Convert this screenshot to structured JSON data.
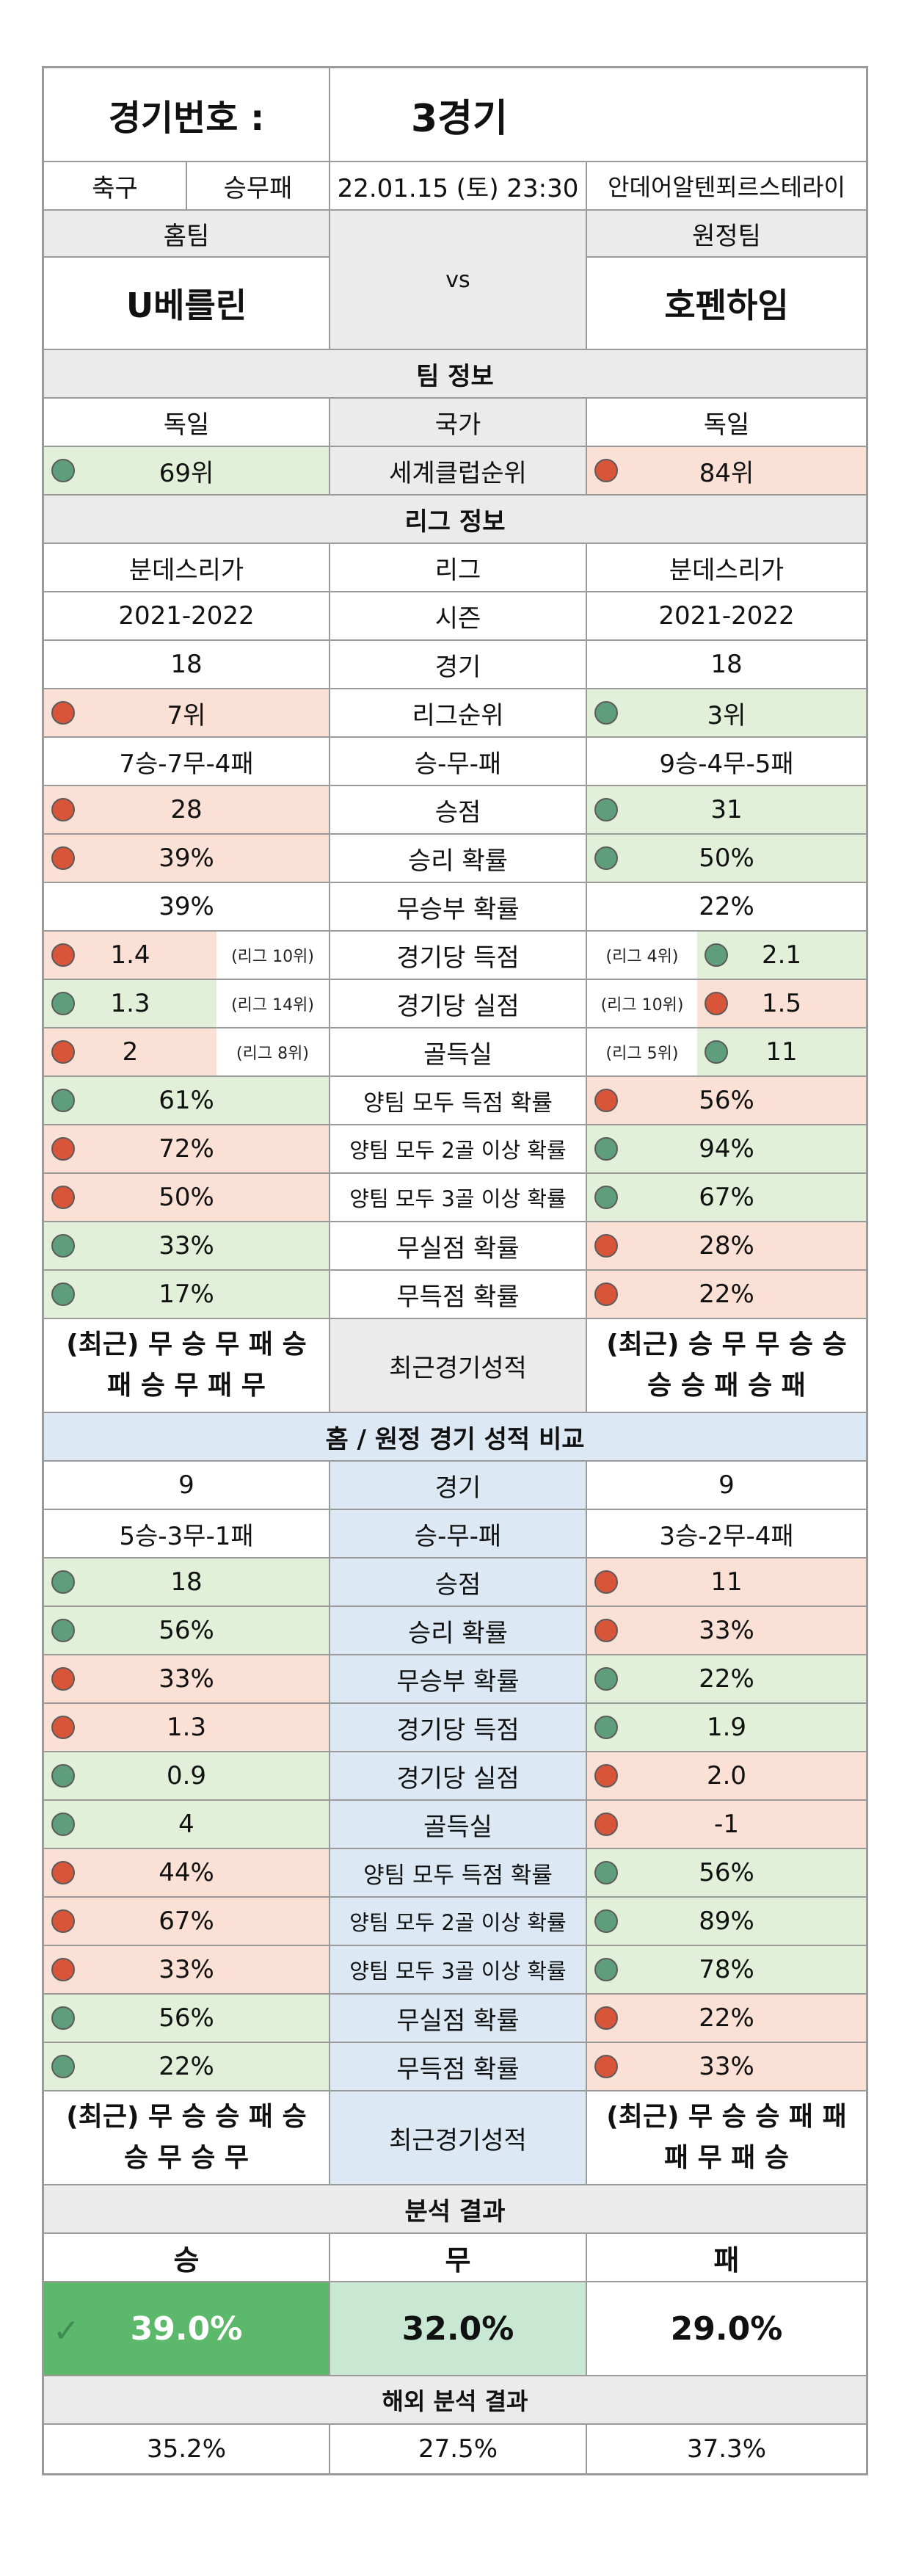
{
  "header": {
    "game_label": "경기번호 :",
    "game_value": "3경기"
  },
  "info": {
    "sport": "축구",
    "bet_type": "승무패",
    "datetime": "22.01.15 (토) 23:30",
    "stadium": "안데어알텐푀르스테라이"
  },
  "teams": {
    "home_label": "홈팀",
    "away_label": "원정팀",
    "vs": "vs",
    "home": "U베를린",
    "away": "호펜하임"
  },
  "team_info": {
    "title": "팀 정보",
    "rows": [
      {
        "home": "독일",
        "label": "국가",
        "away": "독일"
      },
      {
        "home": "69위",
        "label": "세계클럽순위",
        "away": "84위"
      }
    ]
  },
  "league_info": {
    "title": "리그 정보",
    "plain_rows": [
      {
        "home": "분데스리가",
        "label": "리그",
        "away": "분데스리가"
      },
      {
        "home": "2021-2022",
        "label": "시즌",
        "away": "2021-2022"
      },
      {
        "home": "18",
        "label": "경기",
        "away": "18"
      }
    ],
    "rank": {
      "home": "7위",
      "label": "리그순위",
      "away": "3위"
    },
    "record": {
      "home": "7승-7무-4패",
      "label": "승-무-패",
      "away": "9승-4무-5패"
    },
    "points": {
      "home": "28",
      "label": "승점",
      "away": "31"
    },
    "win_prob": {
      "home": "39%",
      "label": "승리 확률",
      "away": "50%"
    },
    "draw_prob": {
      "home": "39%",
      "label": "무승부 확률",
      "away": "22%"
    },
    "split_rows": [
      {
        "home": "1.4",
        "home_rank": "(리그 10위)",
        "label": "경기당 득점",
        "away_rank": "(리그 4위)",
        "away": "2.1"
      },
      {
        "home": "1.3",
        "home_rank": "(리그 14위)",
        "label": "경기당 실점",
        "away_rank": "(리그 10위)",
        "away": "1.5"
      },
      {
        "home": "2",
        "home_rank": "(리그 8위)",
        "label": "골득실",
        "away_rank": "(리그 5위)",
        "away": "11"
      }
    ],
    "prob_rows": [
      {
        "home": "61%",
        "label": "양팀 모두 득점 확률",
        "away": "56%"
      },
      {
        "home": "72%",
        "label": "양팀 모두 2골 이상 확률",
        "away": "94%"
      },
      {
        "home": "50%",
        "label": "양팀 모두 3골 이상 확률",
        "away": "67%"
      },
      {
        "home": "33%",
        "label": "무실점 확률",
        "away": "28%"
      },
      {
        "home": "17%",
        "label": "무득점 확률",
        "away": "22%"
      }
    ],
    "recent": {
      "home_line1": "(최근) 무 승 무 패 승",
      "home_line2": "패 승 무 패 무",
      "label": "최근경기성적",
      "away_line1": "(최근) 승 무 무 승 승",
      "away_line2": "승 승 패 승 패"
    }
  },
  "homeaway": {
    "title": "홈 / 원정 경기 성적 비교",
    "games": {
      "home": "9",
      "label": "경기",
      "away": "9"
    },
    "record": {
      "home": "5승-3무-1패",
      "label": "승-무-패",
      "away": "3승-2무-4패"
    },
    "rows": [
      {
        "home": "18",
        "label": "승점",
        "away": "11"
      },
      {
        "home": "56%",
        "label": "승리 확률",
        "away": "33%"
      },
      {
        "home": "33%",
        "label": "무승부 확률",
        "away": "22%"
      },
      {
        "home": "1.3",
        "label": "경기당 득점",
        "away": "1.9"
      },
      {
        "home": "0.9",
        "label": "경기당 실점",
        "away": "2.0"
      },
      {
        "home": "4",
        "label": "골득실",
        "away": "-1"
      },
      {
        "home": "44%",
        "label": "양팀 모두 득점 확률",
        "away": "56%"
      },
      {
        "home": "67%",
        "label": "양팀 모두 2골 이상 확률",
        "away": "89%"
      },
      {
        "home": "33%",
        "label": "양팀 모두 3골 이상 확률",
        "away": "78%"
      },
      {
        "home": "56%",
        "label": "무실점 확률",
        "away": "22%"
      },
      {
        "home": "22%",
        "label": "무득점 확률",
        "away": "33%"
      }
    ],
    "recent": {
      "home_line1": "(최근) 무 승 승 패 승",
      "home_line2": "승 무 승 무",
      "label": "최근경기성적",
      "away_line1": "(최근) 무 승 승 패 패",
      "away_line2": "패 무 패 승"
    }
  },
  "analysis": {
    "title": "분석 결과",
    "labels": {
      "win": "승",
      "draw": "무",
      "loss": "패"
    },
    "values": {
      "win": "39.0%",
      "draw": "32.0%",
      "loss": "29.0%"
    },
    "overseas_title": "해외 분석 결과",
    "overseas": {
      "win": "35.2%",
      "draw": "27.5%",
      "loss": "37.3%"
    }
  },
  "colors": {
    "green_cell": "#e3f0d9",
    "red_cell": "#fbe1d5",
    "blue_cell": "#dce9f5",
    "grey_cell": "#ebebeb",
    "green_dot": "#5f9e7d",
    "red_dot": "#d9553a",
    "win_cell": "#5cb86a",
    "draw_cell": "#c8e8d4"
  }
}
